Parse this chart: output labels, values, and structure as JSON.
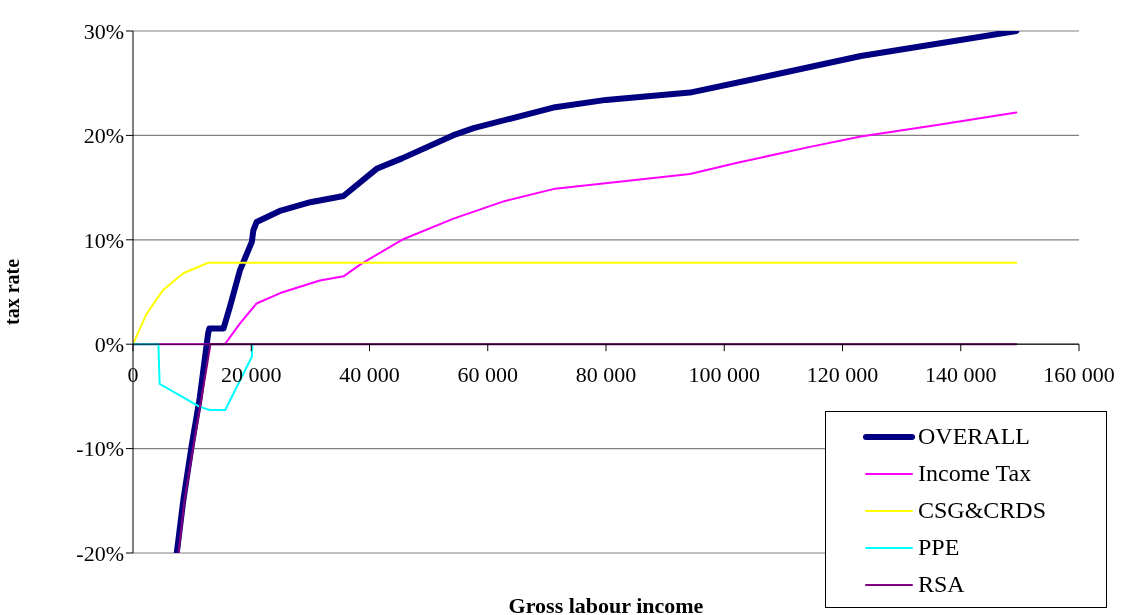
{
  "chart_data": {
    "type": "line",
    "xlabel": "Gross labour income",
    "ylabel": "tax rate",
    "xlim": [
      0,
      160000
    ],
    "xticks": [
      0,
      {
        "value": 20000,
        "label": "20 000"
      },
      {
        "value": 40000,
        "label": "40 000"
      },
      {
        "value": 60000,
        "label": "60 000"
      },
      {
        "value": 80000,
        "label": "80 000"
      },
      {
        "value": 100000,
        "label": "100 000"
      },
      {
        "value": 120000,
        "label": "120 000"
      },
      {
        "value": 140000,
        "label": "140 000"
      },
      {
        "value": 160000,
        "label": "160 000"
      }
    ],
    "ylim": [
      -20,
      30
    ],
    "yticks": [
      {
        "value": -20,
        "label": "-20%"
      },
      {
        "value": -10,
        "label": "-10%"
      },
      {
        "value": 0,
        "label": "0%"
      },
      {
        "value": 10,
        "label": "10%"
      },
      {
        "value": 20,
        "label": "20%"
      },
      {
        "value": 30,
        "label": "30%"
      }
    ],
    "grid": "y",
    "legend": "bottom right",
    "marker": "none",
    "line_style": "solid",
    "series": [
      {
        "name": "OVERALL",
        "color": "#000080",
        "x": [
          7400,
          8500,
          9900,
          11300,
          12700,
          12900,
          15300,
          16400,
          18100,
          20100,
          20350,
          20900,
          25000,
          30000,
          35600,
          41200,
          45500,
          54100,
          57600,
          71400,
          80000,
          94200,
          105900,
          123100,
          149400
        ],
        "values": [
          -20,
          -15,
          -9.8,
          -5.1,
          1.0,
          1.5,
          1.5,
          3.6,
          7.1,
          9.8,
          10.9,
          11.7,
          12.8,
          13.6,
          14.2,
          16.8,
          17.8,
          20.0,
          20.7,
          22.7,
          23.4,
          24.1,
          25.5,
          27.6,
          30.0
        ]
      },
      {
        "name": "Income Tax",
        "color": "#ff00ff",
        "x": [
          0,
          15500,
          15800,
          18100,
          20900,
          24900,
          31600,
          35600,
          38600,
          45500,
          54100,
          62800,
          71400,
          94200,
          102400,
          114500,
          123100,
          136000,
          149400
        ],
        "values": [
          0,
          0,
          0.2,
          2.0,
          3.9,
          4.9,
          6.1,
          6.5,
          7.7,
          10.0,
          12.0,
          13.7,
          14.9,
          16.3,
          17.4,
          18.9,
          19.9,
          21.0,
          22.2
        ]
      },
      {
        "name": "CSG&CRDS",
        "color": "#ffff00",
        "x": [
          0,
          2300,
          5100,
          8500,
          12700,
          149400
        ],
        "values": [
          0,
          2.9,
          5.2,
          6.8,
          7.8,
          7.8
        ]
      },
      {
        "name": "PPE",
        "color": "#00ffff",
        "x": [
          0,
          4300,
          4500,
          11300,
          13000,
          15600,
          20100,
          20200
        ],
        "values": [
          0,
          0,
          -3.8,
          -6.0,
          -6.3,
          -6.3,
          -1.2,
          -0.1
        ]
      },
      {
        "name": "RSA",
        "color": "#800080",
        "x": [
          7700,
          8700,
          10200,
          11900,
          13100,
          149400
        ],
        "values": [
          -20,
          -15,
          -9.8,
          -4.1,
          0,
          0
        ]
      }
    ]
  }
}
